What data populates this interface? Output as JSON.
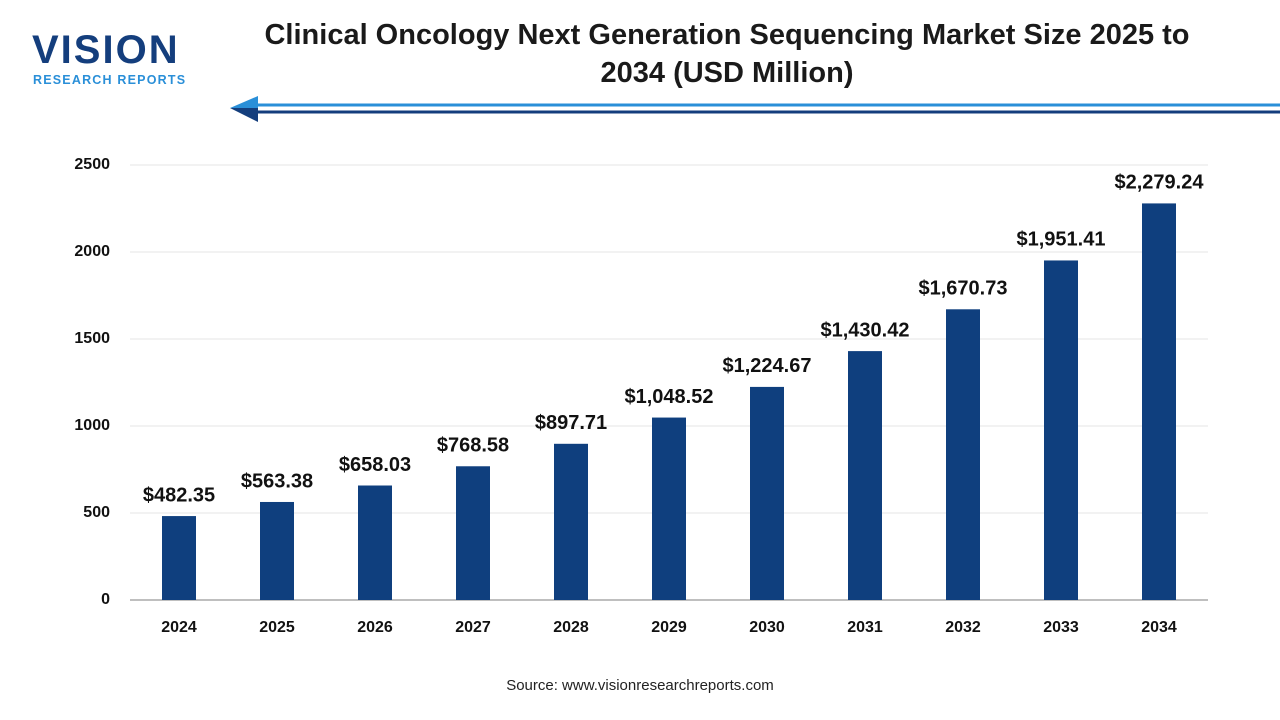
{
  "logo": {
    "name": "VISION",
    "tagline": "RESEARCH REPORTS"
  },
  "source": "Source: www.visionresearchreports.com",
  "chart_data": {
    "type": "bar",
    "title": "Clinical Oncology Next Generation Sequencing Market Size 2025 to 2034 (USD Million)",
    "categories": [
      "2024",
      "2025",
      "2026",
      "2027",
      "2028",
      "2029",
      "2030",
      "2031",
      "2032",
      "2033",
      "2034"
    ],
    "values": [
      482.35,
      563.38,
      658.03,
      768.58,
      897.71,
      1048.52,
      1224.67,
      1430.42,
      1670.73,
      1951.41,
      2279.24
    ],
    "value_labels": [
      "$482.35",
      "$563.38",
      "$658.03",
      "$768.58",
      "$897.71",
      "$1,048.52",
      "$1,224.67",
      "$1,430.42",
      "$1,670.73",
      "$1,951.41",
      "$2,279.24"
    ],
    "color": "#0f3f7e",
    "ylim": [
      0,
      2500
    ],
    "yticks": [
      0,
      500,
      1000,
      1500,
      2000,
      2500
    ],
    "grid": true
  }
}
